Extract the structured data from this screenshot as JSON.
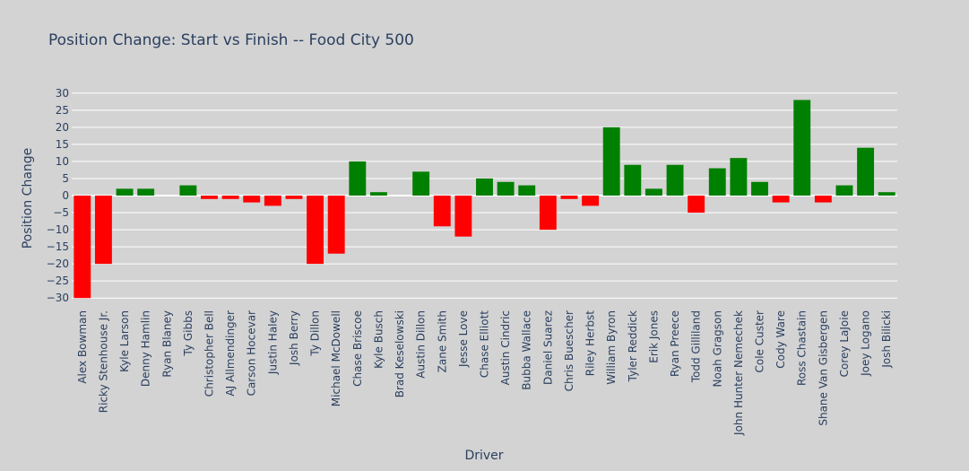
{
  "chart_data": {
    "type": "bar",
    "title": "Position Change: Start vs Finish -- Food City 500",
    "xlabel": "Driver",
    "ylabel": "Position Change",
    "ylim": [
      -31,
      31
    ],
    "yticks": [
      -30,
      -25,
      -20,
      -15,
      -10,
      -5,
      0,
      5,
      10,
      15,
      20,
      25,
      30
    ],
    "ytick_labels": [
      "−30",
      "−25",
      "−20",
      "−15",
      "−10",
      "−5",
      "0",
      "5",
      "10",
      "15",
      "20",
      "25",
      "30"
    ],
    "grid": true,
    "colors": {
      "positive": "#008000",
      "negative": "#ff0000",
      "grid": "#ffffff",
      "background": "#d3d3d3"
    },
    "categories": [
      "Alex Bowman",
      "Ricky Stenhouse Jr.",
      "Kyle Larson",
      "Denny Hamlin",
      "Ryan Blaney",
      "Ty Gibbs",
      "Christopher Bell",
      "AJ Allmendinger",
      "Carson Hocevar",
      "Justin Haley",
      "Josh Berry",
      "Ty Dillon",
      "Michael McDowell",
      "Chase Briscoe",
      "Kyle Busch",
      "Brad Keselowski",
      "Austin Dillon",
      "Zane Smith",
      "Jesse Love",
      "Chase Elliott",
      "Austin Cindric",
      "Bubba Wallace",
      "Daniel Suarez",
      "Chris Buescher",
      "Riley Herbst",
      "William Byron",
      "Tyler Reddick",
      "Erik Jones",
      "Ryan Preece",
      "Todd Gilliland",
      "Noah Gragson",
      "John Hunter Nemechek",
      "Cole Custer",
      "Cody Ware",
      "Ross Chastain",
      "Shane Van Gisbergen",
      "Corey LaJoie",
      "Joey Logano",
      "Josh Bilicki"
    ],
    "values": [
      -30,
      -20,
      2,
      2,
      0,
      3,
      -1,
      -1,
      -2,
      -3,
      -1,
      -20,
      -17,
      10,
      1,
      0,
      7,
      -9,
      -12,
      5,
      4,
      3,
      -10,
      -1,
      -3,
      20,
      9,
      2,
      9,
      -5,
      8,
      11,
      4,
      -2,
      28,
      -2,
      3,
      14,
      1
    ]
  }
}
